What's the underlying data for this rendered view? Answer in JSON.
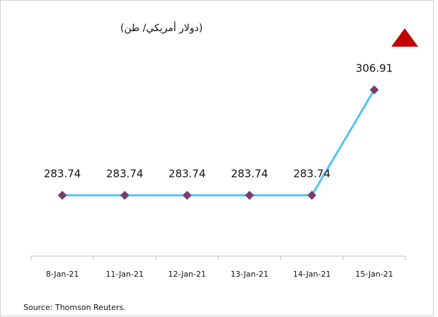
{
  "chart_data": {
    "type": "line",
    "title": "(دولار أمريكي/ طن)",
    "source": "Source: Thomson Reuters.",
    "categories": [
      "8-Jan-21",
      "11-Jan-21",
      "12-Jan-21",
      "13-Jan-21",
      "14-Jan-21",
      "15-Jan-21"
    ],
    "series": [
      {
        "name": null,
        "color": "#4fc3f3",
        "marker_color": "#7a3b6e",
        "values": [
          283.74,
          283.74,
          283.74,
          283.74,
          283.74,
          306.91
        ]
      }
    ]
  }
}
